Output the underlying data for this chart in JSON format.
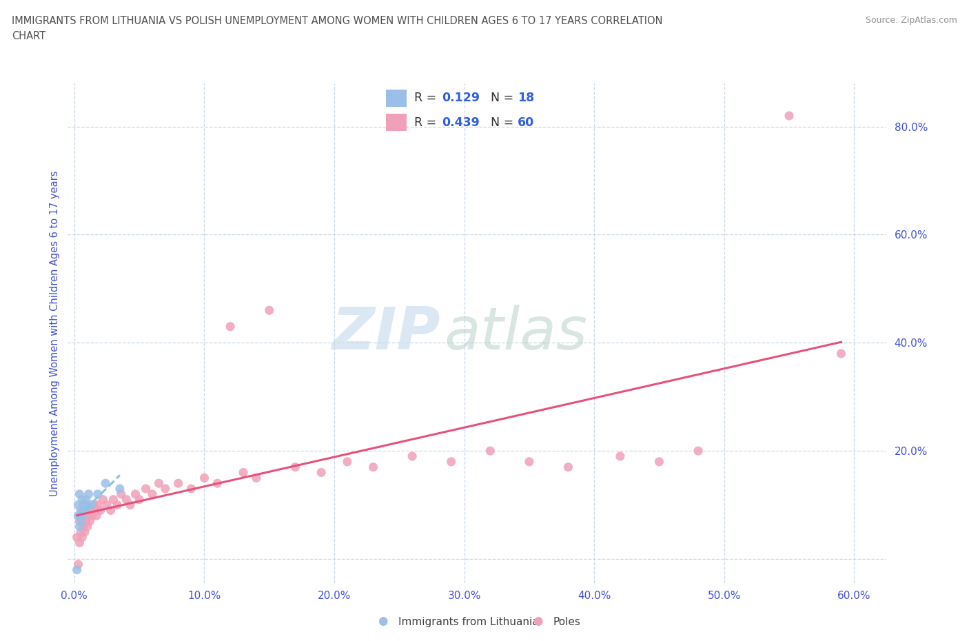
{
  "title_line1": "IMMIGRANTS FROM LITHUANIA VS POLISH UNEMPLOYMENT AMONG WOMEN WITH CHILDREN AGES 6 TO 17 YEARS CORRELATION",
  "title_line2": "CHART",
  "source": "Source: ZipAtlas.com",
  "ylabel": "Unemployment Among Women with Children Ages 6 to 17 years",
  "xlabel_lithuania": "Immigrants from Lithuania",
  "xlabel_poles": "Poles",
  "watermark_zip": "ZIP",
  "watermark_atlas": "atlas",
  "R_lithuania": 0.129,
  "N_lithuania": 18,
  "R_poles": 0.439,
  "N_poles": 60,
  "xlim_min": -0.005,
  "xlim_max": 0.625,
  "ylim_min": -0.045,
  "ylim_max": 0.88,
  "xticks": [
    0.0,
    0.1,
    0.2,
    0.3,
    0.4,
    0.5,
    0.6
  ],
  "xticklabels": [
    "0.0%",
    "10.0%",
    "20.0%",
    "30.0%",
    "40.0%",
    "50.0%",
    "60.0%"
  ],
  "yticks": [
    0.0,
    0.2,
    0.4,
    0.6,
    0.8
  ],
  "yticklabels": [
    "",
    "20.0%",
    "40.0%",
    "60.0%",
    "80.0%"
  ],
  "color_lithuania": "#9bbfe8",
  "color_poles": "#f0a0b8",
  "line_color_lithuania": "#80c8e0",
  "line_color_poles": "#e8507a",
  "title_color": "#505050",
  "source_color": "#909090",
  "label_color": "#4050d8",
  "tick_color": "#4050d8",
  "background": "#ffffff",
  "grid_color": "#c8d8e8",
  "legend_text_color": "#303030",
  "legend_value_color": "#3060e0",
  "lithuania_x": [
    0.002,
    0.003,
    0.003,
    0.004,
    0.004,
    0.005,
    0.005,
    0.006,
    0.006,
    0.007,
    0.008,
    0.009,
    0.01,
    0.011,
    0.013,
    0.018,
    0.024,
    0.035
  ],
  "lithuania_y": [
    -0.02,
    0.08,
    0.1,
    0.06,
    0.12,
    0.07,
    0.09,
    0.08,
    0.11,
    0.1,
    0.09,
    0.11,
    0.1,
    0.12,
    0.1,
    0.12,
    0.14,
    0.13
  ],
  "poles_x": [
    0.002,
    0.003,
    0.004,
    0.004,
    0.005,
    0.005,
    0.006,
    0.006,
    0.007,
    0.007,
    0.008,
    0.008,
    0.009,
    0.01,
    0.01,
    0.011,
    0.012,
    0.013,
    0.014,
    0.015,
    0.016,
    0.017,
    0.018,
    0.02,
    0.022,
    0.025,
    0.028,
    0.03,
    0.033,
    0.036,
    0.04,
    0.043,
    0.047,
    0.05,
    0.055,
    0.06,
    0.065,
    0.07,
    0.08,
    0.09,
    0.1,
    0.11,
    0.12,
    0.13,
    0.14,
    0.15,
    0.17,
    0.19,
    0.21,
    0.23,
    0.26,
    0.29,
    0.32,
    0.35,
    0.38,
    0.42,
    0.45,
    0.48,
    0.55,
    0.59
  ],
  "poles_y": [
    0.04,
    -0.01,
    0.03,
    0.07,
    0.05,
    0.08,
    0.04,
    0.09,
    0.06,
    0.1,
    0.05,
    0.08,
    0.07,
    0.06,
    0.09,
    0.08,
    0.07,
    0.09,
    0.08,
    0.1,
    0.09,
    0.08,
    0.1,
    0.09,
    0.11,
    0.1,
    0.09,
    0.11,
    0.1,
    0.12,
    0.11,
    0.1,
    0.12,
    0.11,
    0.13,
    0.12,
    0.14,
    0.13,
    0.14,
    0.13,
    0.15,
    0.14,
    0.43,
    0.16,
    0.15,
    0.46,
    0.17,
    0.16,
    0.18,
    0.17,
    0.19,
    0.18,
    0.2,
    0.18,
    0.17,
    0.19,
    0.18,
    0.2,
    0.82,
    0.38
  ]
}
